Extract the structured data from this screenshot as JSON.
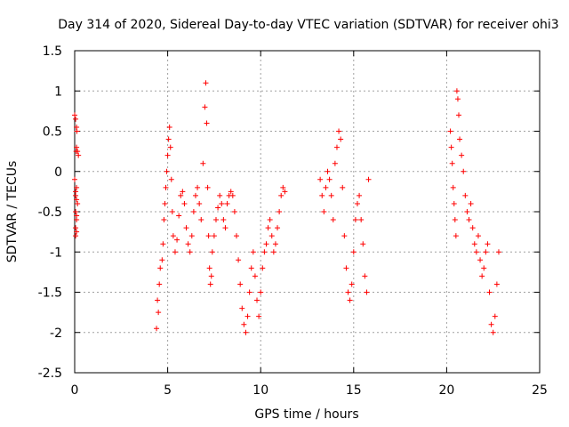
{
  "chart_data": {
    "type": "scatter",
    "title": "Day 314 of 2020, Sidereal Day-to-day VTEC variation (SDTVAR) for receiver ohi3",
    "xlabel": "GPS time / hours",
    "ylabel": "SDTVAR / TECUs",
    "xlim": [
      0,
      25
    ],
    "ylim": [
      -2.5,
      1.5
    ],
    "xticks": [
      0,
      5,
      10,
      15,
      20,
      25
    ],
    "yticks": [
      -2.5,
      -2,
      -1.5,
      -1,
      -0.5,
      0,
      0.5,
      1,
      1.5
    ],
    "grid": true,
    "legend": "none",
    "marker": "+",
    "colors": {
      "series": "#ff0000",
      "grid": "#a0a0a0",
      "axes": "#000000"
    },
    "series": [
      {
        "name": "SDTVAR",
        "x": [
          0.0,
          0.05,
          0.1,
          0.15,
          0.2,
          0.0,
          0.05,
          0.1,
          0.15,
          0.05,
          0.1,
          0.1,
          0.05,
          0.1,
          0.05,
          0.1,
          0.08,
          0.12,
          0.05,
          0.1,
          4.4,
          4.5,
          4.45,
          4.55,
          4.6,
          4.7,
          4.75,
          4.8,
          4.85,
          4.9,
          4.95,
          5.0,
          5.05,
          5.1,
          5.15,
          5.2,
          5.25,
          5.3,
          5.4,
          5.5,
          5.6,
          5.7,
          5.8,
          5.9,
          6.0,
          6.1,
          6.2,
          6.3,
          6.4,
          6.5,
          6.6,
          6.7,
          6.8,
          6.9,
          7.0,
          7.05,
          7.1,
          7.15,
          7.2,
          7.25,
          7.3,
          7.35,
          7.4,
          7.5,
          7.6,
          7.7,
          7.8,
          7.9,
          8.0,
          8.1,
          8.2,
          8.3,
          8.4,
          8.5,
          8.6,
          8.7,
          8.8,
          8.9,
          9.0,
          9.1,
          9.2,
          9.3,
          9.4,
          9.5,
          9.6,
          9.7,
          9.8,
          9.9,
          10.0,
          10.1,
          10.2,
          10.3,
          10.4,
          10.5,
          10.6,
          10.7,
          10.8,
          10.9,
          11.0,
          11.1,
          11.2,
          11.3,
          13.2,
          13.3,
          13.4,
          13.5,
          13.6,
          13.7,
          13.8,
          13.9,
          14.0,
          14.1,
          14.2,
          14.3,
          14.4,
          14.5,
          14.6,
          14.7,
          14.8,
          14.9,
          15.0,
          15.1,
          15.2,
          15.3,
          15.4,
          15.5,
          15.6,
          15.7,
          15.8,
          20.2,
          20.25,
          20.3,
          20.35,
          20.4,
          20.45,
          20.5,
          20.55,
          20.6,
          20.65,
          20.7,
          20.8,
          20.9,
          21.0,
          21.1,
          21.2,
          21.3,
          21.4,
          21.5,
          21.6,
          21.7,
          21.8,
          21.9,
          22.0,
          22.1,
          22.2,
          22.3,
          22.4,
          22.5,
          22.6,
          22.7,
          22.8
        ],
        "y": [
          0.7,
          0.65,
          0.55,
          0.25,
          0.2,
          -0.1,
          -0.25,
          -0.35,
          -0.4,
          -0.5,
          -0.55,
          -0.6,
          -0.7,
          -0.75,
          -0.8,
          0.3,
          0.25,
          0.5,
          -0.3,
          -0.2,
          -1.95,
          -1.75,
          -1.6,
          -1.4,
          -1.2,
          -1.1,
          -0.9,
          -0.6,
          -0.4,
          -0.2,
          0.0,
          0.2,
          0.4,
          0.55,
          0.3,
          -0.1,
          -0.5,
          -0.8,
          -1.0,
          -0.85,
          -0.55,
          -0.3,
          -0.25,
          -0.4,
          -0.7,
          -0.9,
          -1.0,
          -0.8,
          -0.5,
          -0.3,
          -0.2,
          -0.4,
          -0.6,
          0.1,
          0.8,
          1.1,
          0.6,
          -0.2,
          -0.8,
          -1.2,
          -1.4,
          -1.3,
          -1.0,
          -0.8,
          -0.6,
          -0.45,
          -0.3,
          -0.4,
          -0.6,
          -0.7,
          -0.4,
          -0.3,
          -0.25,
          -0.3,
          -0.5,
          -0.8,
          -1.1,
          -1.4,
          -1.7,
          -1.9,
          -2.0,
          -1.8,
          -1.5,
          -1.2,
          -1.0,
          -1.3,
          -1.6,
          -1.8,
          -1.5,
          -1.2,
          -1.0,
          -0.9,
          -0.7,
          -0.6,
          -0.8,
          -1.0,
          -0.9,
          -0.7,
          -0.5,
          -0.3,
          -0.2,
          -0.25,
          -0.1,
          -0.3,
          -0.5,
          -0.2,
          0.0,
          -0.1,
          -0.3,
          -0.6,
          0.1,
          0.3,
          0.5,
          0.4,
          -0.2,
          -0.8,
          -1.2,
          -1.5,
          -1.6,
          -1.4,
          -1.0,
          -0.6,
          -0.4,
          -0.3,
          -0.6,
          -0.9,
          -1.3,
          -1.5,
          -0.1,
          0.5,
          0.3,
          0.1,
          -0.2,
          -0.4,
          -0.6,
          -0.8,
          1.0,
          0.9,
          0.7,
          0.4,
          0.2,
          0.0,
          -0.3,
          -0.5,
          -0.6,
          -0.4,
          -0.7,
          -0.9,
          -1.0,
          -0.8,
          -1.1,
          -1.3,
          -1.2,
          -1.0,
          -0.9,
          -1.5,
          -1.9,
          -2.0,
          -1.8,
          -1.4,
          -1.0
        ]
      }
    ]
  }
}
